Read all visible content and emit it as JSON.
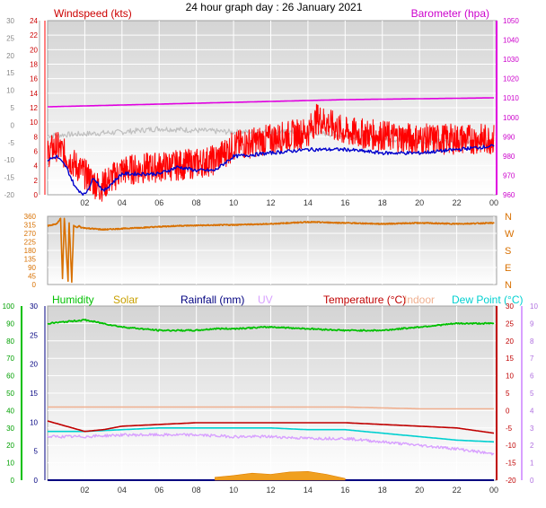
{
  "page": {
    "title": "24 hour graph day : 26 January 2021"
  },
  "x_ticks": [
    "02",
    "04",
    "06",
    "08",
    "10",
    "12",
    "14",
    "16",
    "18",
    "20",
    "22",
    "00"
  ],
  "chart_data": [
    {
      "name": "wind-barometer",
      "type": "line",
      "title": "24 hour graph day : 26 January 2021",
      "left_label": "Windspeed (kts)",
      "right_label": "Barometer (hpa)",
      "outer_left_ticks": [
        "30",
        "25",
        "20",
        "15",
        "10",
        "5",
        "0",
        "-5",
        "-10",
        "-15",
        "-20"
      ],
      "left_ticks": [
        "24",
        "22",
        "20",
        "18",
        "16",
        "14",
        "12",
        "10",
        "8",
        "6",
        "4",
        "2",
        "0"
      ],
      "right_ticks": [
        "1050",
        "1040",
        "1030",
        "1020",
        "1010",
        "1000",
        "990",
        "980",
        "970",
        "960"
      ],
      "left_ylim": [
        0,
        25
      ],
      "right_ylim": [
        950,
        1050
      ],
      "colors": {
        "windspeed": "#ff0000",
        "barometer": "#e000e0",
        "windchill": "#0000cc",
        "temperature": "#c0c0c0"
      },
      "barometer": {
        "x": [
          0,
          4,
          8,
          12,
          16,
          20,
          24
        ],
        "y": [
          1004,
          1005,
          1006,
          1007,
          1008,
          1008.5,
          1009
        ]
      },
      "windspeed": {
        "x": [
          0,
          0.5,
          1.2,
          2,
          2.8,
          4,
          6,
          8,
          9,
          10,
          12,
          14,
          14.5,
          16,
          18,
          20,
          22,
          24
        ],
        "y": [
          6,
          7,
          5,
          3,
          1,
          3.5,
          4,
          4.5,
          5,
          7,
          8,
          9,
          11,
          9,
          8.5,
          8,
          8,
          8
        ]
      },
      "windchill": {
        "x": [
          0,
          0.5,
          1,
          1.5,
          2,
          2.5,
          3,
          4,
          6,
          7,
          8,
          9,
          10,
          12,
          14,
          16,
          18,
          20,
          22,
          24
        ],
        "y": [
          -10,
          -9,
          -12,
          -18,
          -20,
          -15,
          -19,
          -14,
          -14,
          -12,
          -13,
          -13,
          -9,
          -8,
          -7,
          -7,
          -8,
          -8,
          -7,
          -6
        ]
      },
      "temperature": {
        "x": [
          0,
          4,
          6,
          10,
          14,
          18,
          22,
          24
        ],
        "y": [
          -3,
          -2,
          -1,
          -2,
          -2,
          -4,
          -5,
          -5
        ]
      }
    },
    {
      "name": "wind-direction",
      "type": "line",
      "left_ticks": [
        "360",
        "315",
        "270",
        "225",
        "180",
        "135",
        "90",
        "45",
        "0"
      ],
      "right_ticks": [
        "N",
        "W",
        "S",
        "E",
        "N"
      ],
      "ylim": [
        0,
        360
      ],
      "colors": {
        "direction": "#d87000"
      },
      "direction": {
        "x": [
          0,
          0.5,
          0.7,
          0.8,
          0.9,
          1.1,
          1.15,
          1.3,
          1.4,
          1.6,
          1.7,
          1.8,
          3,
          5,
          7,
          10,
          12,
          14,
          16,
          18,
          20,
          22,
          24
        ],
        "y": [
          310,
          320,
          350,
          30,
          350,
          20,
          350,
          10,
          310,
          300,
          310,
          300,
          290,
          300,
          310,
          315,
          320,
          330,
          325,
          320,
          325,
          320,
          325
        ]
      }
    },
    {
      "name": "temperature-humidity",
      "type": "line",
      "legend": [
        "Humidity",
        "Solar",
        "Rainfall (mm)",
        "UV",
        "Temperature (°C)",
        "Indoor",
        "Dew Point (°C)"
      ],
      "colors": {
        "Humidity": "#00c000",
        "Solar": "#c8a000",
        "Rainfall (mm)": "#000080",
        "UV": "#d8a0ff",
        "Temperature (°C)": "#c00000",
        "Indoor": "#f0b090",
        "Dew Point (°C)": "#00d0d0"
      },
      "left_ticks_humidity": [
        "100",
        "90",
        "80",
        "70",
        "60",
        "50",
        "40",
        "30",
        "20",
        "10",
        "0"
      ],
      "left_ticks_rain": [
        "30",
        "25",
        "20",
        "15",
        "10",
        "5",
        "0"
      ],
      "right_ticks_temp": [
        "30",
        "25",
        "20",
        "15",
        "10",
        "5",
        "0",
        "-5",
        "-10",
        "-15",
        "-20"
      ],
      "right_ticks_uv": [
        "10",
        "9",
        "8",
        "7",
        "6",
        "5",
        "4",
        "3",
        "2",
        "1",
        "0"
      ],
      "humidity": {
        "x": [
          0,
          1,
          2,
          3,
          4,
          6,
          8,
          9,
          10,
          12,
          14,
          16,
          18,
          20,
          22,
          24
        ],
        "y": [
          90,
          91,
          92,
          90,
          88,
          86,
          86,
          87,
          87,
          88,
          87,
          86,
          86,
          88,
          90,
          90
        ]
      },
      "temperature": {
        "x": [
          0,
          1,
          2,
          3,
          4,
          6,
          8,
          10,
          12,
          14,
          16,
          18,
          20,
          22,
          24
        ],
        "y": [
          -3,
          -4.5,
          -6,
          -5.5,
          -4.5,
          -4,
          -3.5,
          -3.5,
          -3.5,
          -3.5,
          -3.5,
          -4,
          -4.5,
          -5,
          -6.5
        ]
      },
      "dew_point": {
        "x": [
          0,
          2,
          4,
          6,
          8,
          10,
          12,
          14,
          16,
          18,
          20,
          22,
          24
        ],
        "y": [
          -6,
          -6,
          -5.5,
          -5,
          -5,
          -5,
          -5,
          -5.5,
          -5.5,
          -6.5,
          -7.5,
          -8.5,
          -9
        ]
      },
      "indoor": {
        "x": [
          0,
          4,
          8,
          12,
          16,
          20,
          24
        ],
        "y": [
          1,
          1,
          1,
          1,
          1,
          0.5,
          0.5
        ]
      },
      "uv_trace": {
        "x": [
          0,
          2,
          4,
          6,
          8,
          10,
          12,
          14,
          16,
          18,
          20,
          22,
          24
        ],
        "y": [
          -7.5,
          -7.5,
          -7,
          -7,
          -7,
          -7.5,
          -7.5,
          -8,
          -8,
          -9,
          -10,
          -11,
          -12.5
        ]
      },
      "solar": {
        "x": [
          9,
          10,
          11,
          12,
          13,
          14,
          15,
          16
        ],
        "y": [
          0.5,
          0.8,
          1.2,
          1.0,
          1.4,
          1.5,
          1.0,
          0.3
        ]
      },
      "rainfall": {
        "x": [
          0,
          24
        ],
        "y": [
          0,
          0
        ]
      }
    }
  ]
}
